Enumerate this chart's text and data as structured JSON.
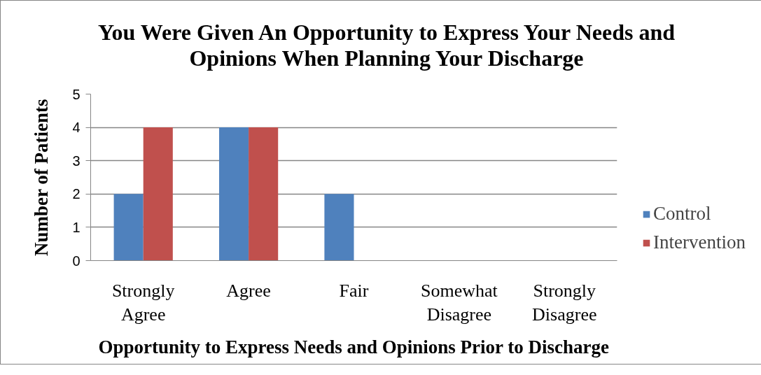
{
  "chart_data": {
    "type": "bar",
    "title": "You Were Given An Opportunity to Express Your Needs and Opinions When Planning Your Discharge",
    "xlabel": "Opportunity to Express Needs and Opinions Prior to Discharge",
    "ylabel": "Number of Patients",
    "categories": [
      "Strongly Agree",
      "Agree",
      "Fair",
      "Somewhat Disagree",
      "Strongly Disagree"
    ],
    "series": [
      {
        "name": "Control",
        "color": "#4f81bd",
        "values": [
          2,
          4,
          2,
          0,
          0
        ]
      },
      {
        "name": "Intervention",
        "color": "#c0504d",
        "values": [
          4,
          4,
          0,
          0,
          0
        ]
      }
    ],
    "ylim": [
      0,
      5
    ],
    "yticks": [
      0,
      1,
      2,
      3,
      4,
      5
    ],
    "grid": "y",
    "legend": "right"
  }
}
